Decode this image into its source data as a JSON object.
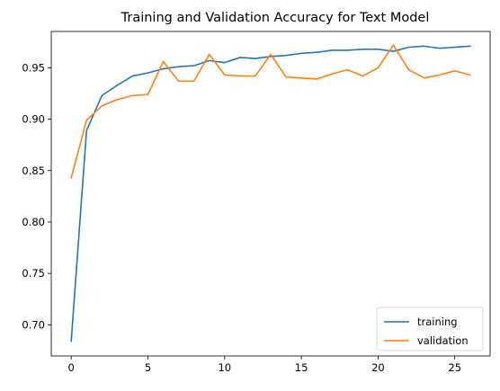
{
  "chart_data": {
    "type": "line",
    "title": "Training and Validation Accuracy for Text Model",
    "xlabel": "",
    "ylabel": "",
    "xlim": [
      -1.3,
      27.3
    ],
    "ylim": [
      0.6697,
      0.9853
    ],
    "xticks": [
      0,
      5,
      10,
      15,
      20,
      25
    ],
    "xtick_labels": [
      "0",
      "5",
      "10",
      "15",
      "20",
      "25"
    ],
    "yticks": [
      0.7,
      0.75,
      0.8,
      0.85,
      0.9,
      0.95
    ],
    "ytick_labels": [
      "0.70",
      "0.75",
      "0.80",
      "0.85",
      "0.90",
      "0.95"
    ],
    "grid": false,
    "legend": "lower right",
    "x": [
      0,
      1,
      2,
      3,
      4,
      5,
      6,
      7,
      8,
      9,
      10,
      11,
      12,
      13,
      14,
      15,
      16,
      17,
      18,
      19,
      20,
      21,
      22,
      23,
      24,
      25,
      26
    ],
    "series": [
      {
        "name": "training",
        "color": "#1f77b4",
        "values": [
          0.684,
          0.889,
          0.923,
          0.933,
          0.942,
          0.945,
          0.949,
          0.951,
          0.952,
          0.957,
          0.955,
          0.96,
          0.959,
          0.961,
          0.962,
          0.964,
          0.965,
          0.967,
          0.967,
          0.968,
          0.968,
          0.966,
          0.97,
          0.971,
          0.969,
          0.97,
          0.971
        ]
      },
      {
        "name": "validation",
        "color": "#ff7f0e",
        "values": [
          0.843,
          0.899,
          0.913,
          0.919,
          0.923,
          0.924,
          0.956,
          0.937,
          0.937,
          0.963,
          0.943,
          0.942,
          0.942,
          0.963,
          0.941,
          0.94,
          0.939,
          0.944,
          0.948,
          0.942,
          0.95,
          0.972,
          0.948,
          0.94,
          0.943,
          0.947,
          0.943
        ]
      }
    ]
  }
}
